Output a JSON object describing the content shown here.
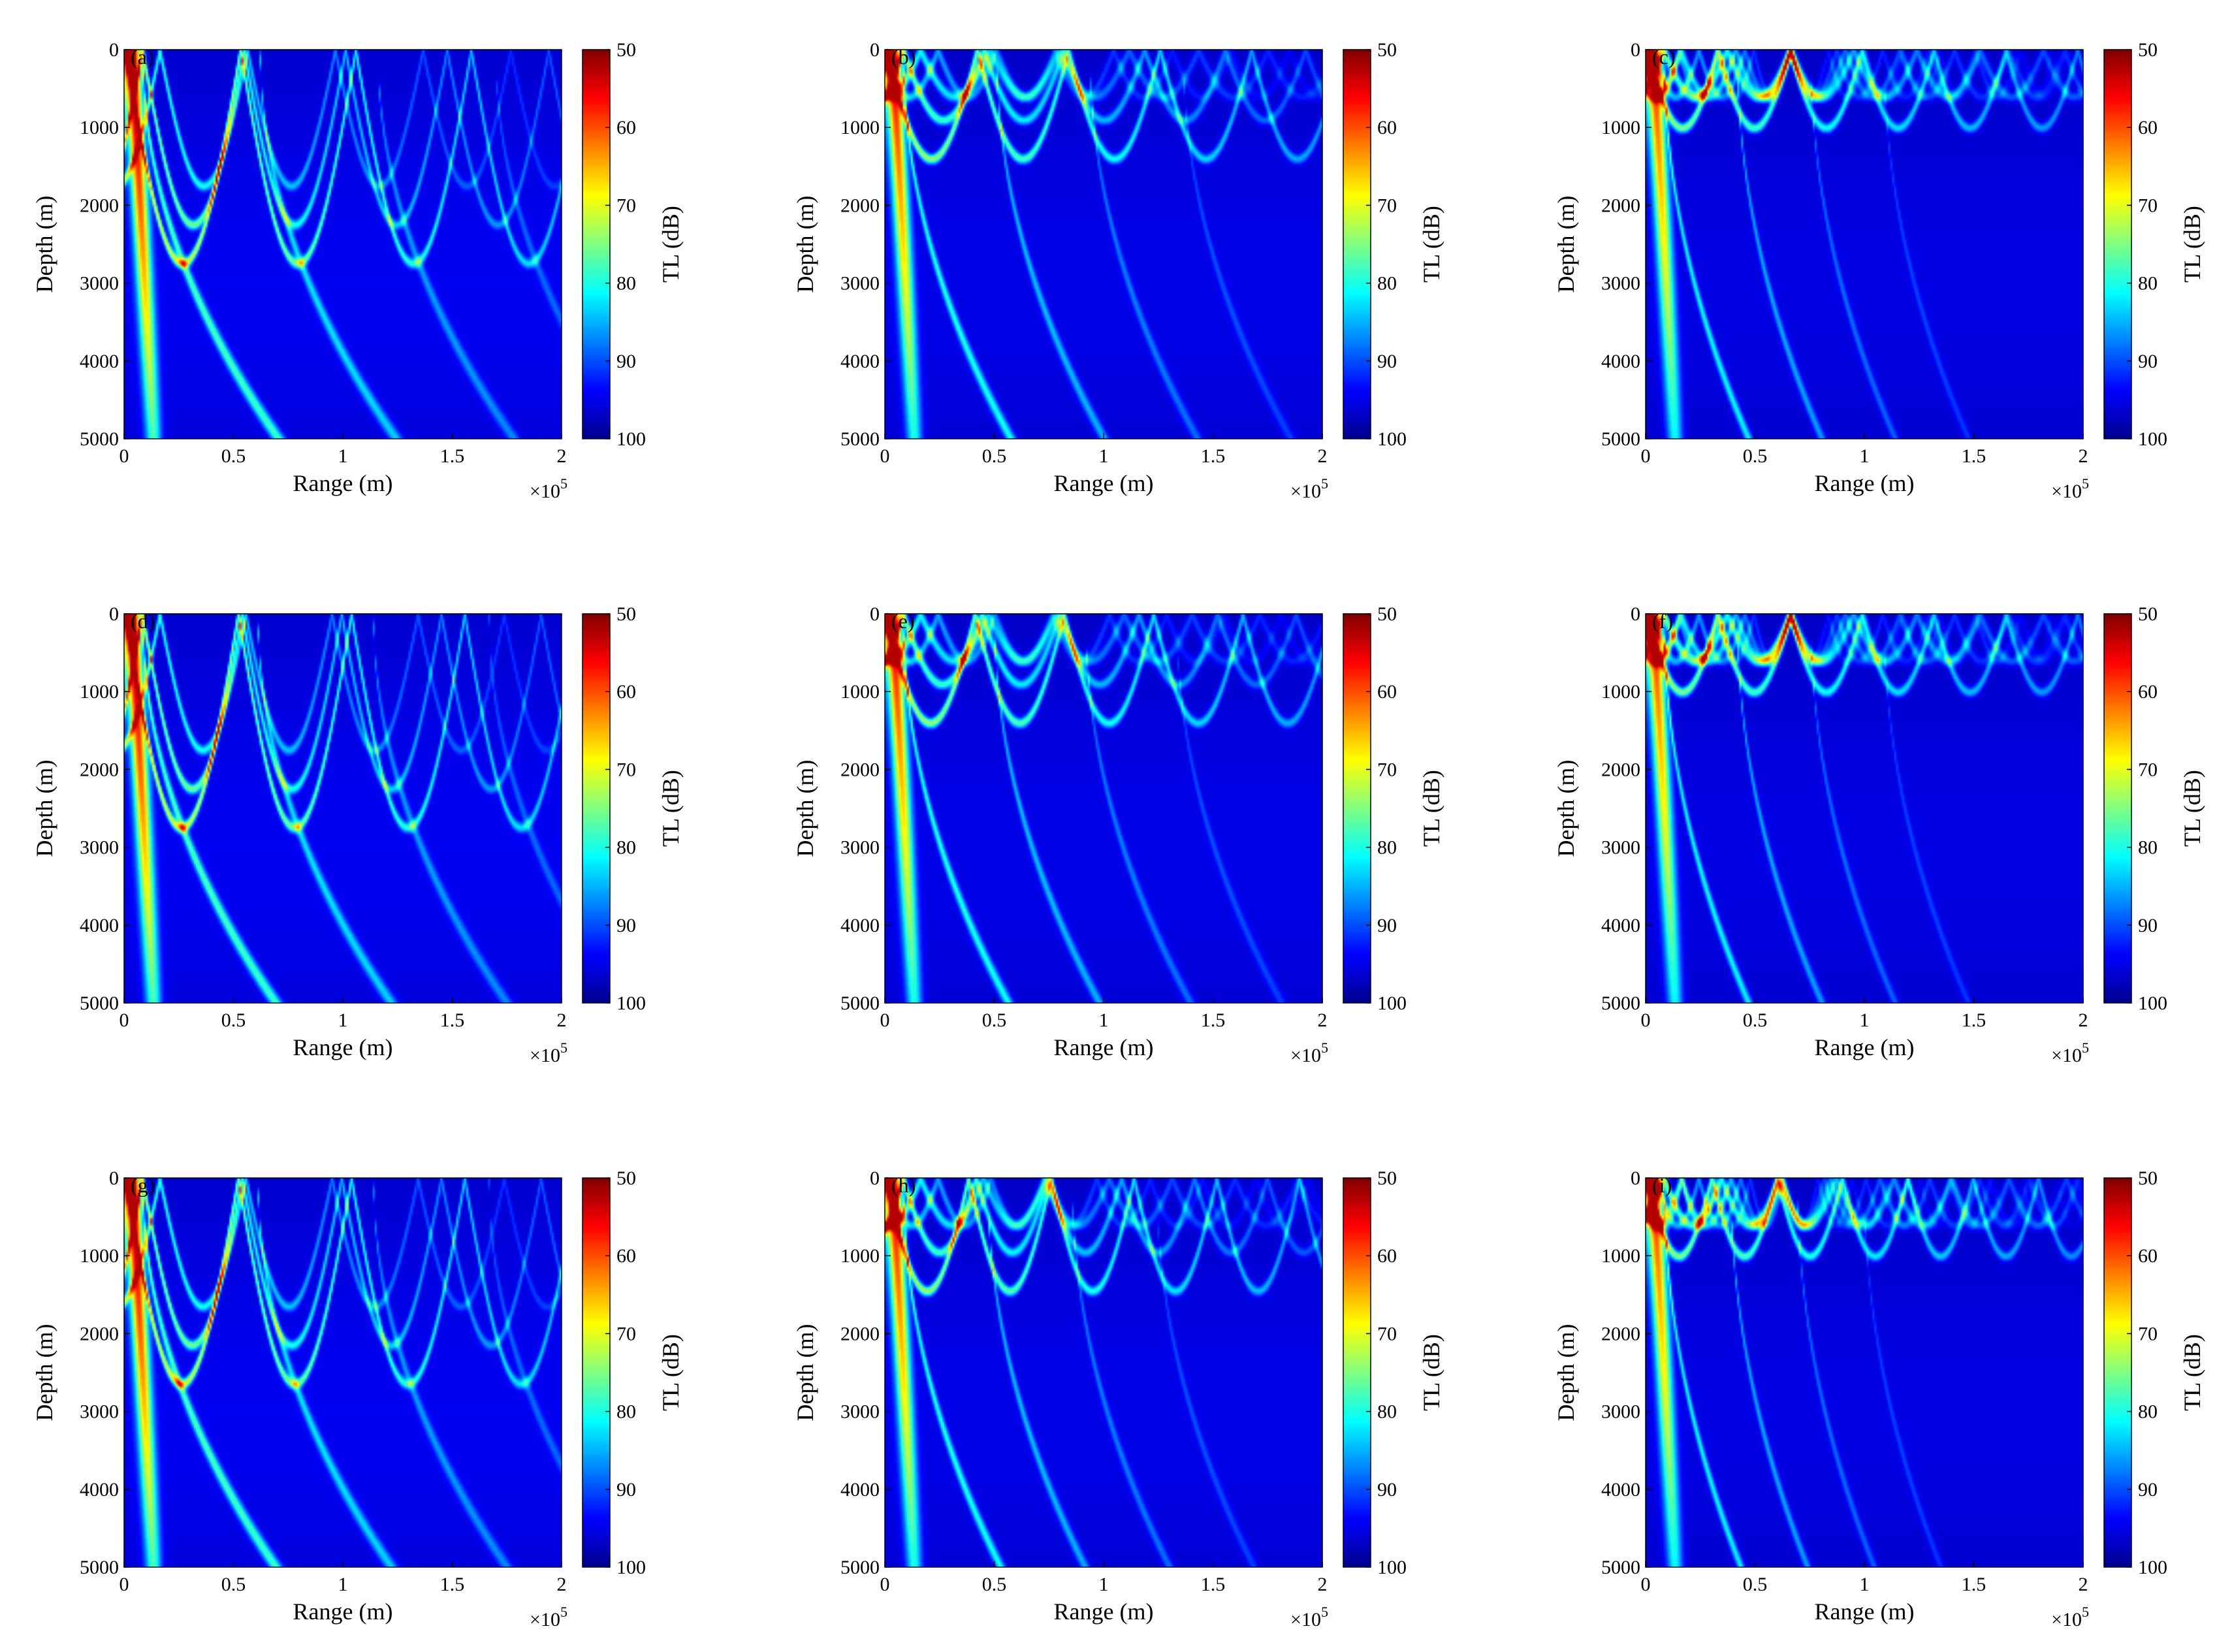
{
  "colormap": {
    "name": "jet",
    "stops": [
      "#00008f",
      "#0000ff",
      "#0080ff",
      "#00ffff",
      "#80ff80",
      "#ffff00",
      "#ff8000",
      "#ff0000",
      "#800000"
    ]
  },
  "chart_data": [
    {
      "panel": "(a)",
      "type": "heatmap",
      "xlabel": "Range (m)",
      "ylabel": "Depth (m)",
      "x_exponent": "×10",
      "x_exponent_power": "5",
      "xlim": [
        0,
        2
      ],
      "ylim": [
        0,
        5000
      ],
      "x_ticks": [
        "0",
        "0.5",
        "1",
        "1.5",
        "2"
      ],
      "y_ticks": [
        "0",
        "1000",
        "2000",
        "3000",
        "4000",
        "5000"
      ],
      "colorbar": {
        "label": "TL (dB)",
        "range": [
          50,
          100
        ],
        "ticks": [
          "50",
          "60",
          "70",
          "80",
          "90",
          "100"
        ]
      },
      "turning_depth_m": 2750,
      "cycle_length_x1e5_m": 0.53,
      "mode_density": 1,
      "brightness": 1.0
    },
    {
      "panel": "(b)",
      "type": "heatmap",
      "xlabel": "Range (m)",
      "ylabel": "Depth (m)",
      "x_exponent": "×10",
      "x_exponent_power": "5",
      "xlim": [
        0,
        2
      ],
      "ylim": [
        0,
        5000
      ],
      "x_ticks": [
        "0",
        "0.5",
        "1",
        "1.5",
        "2"
      ],
      "y_ticks": [
        "0",
        "1000",
        "2000",
        "3000",
        "4000",
        "5000"
      ],
      "colorbar": {
        "label": "TL (dB)",
        "range": [
          50,
          100
        ],
        "ticks": [
          "50",
          "60",
          "70",
          "80",
          "90",
          "100"
        ]
      },
      "turning_depth_m": 1400,
      "cycle_length_x1e5_m": 0.42,
      "mode_density": 2,
      "brightness": 0.9
    },
    {
      "panel": "(c)",
      "type": "heatmap",
      "xlabel": "Range (m)",
      "ylabel": "Depth (m)",
      "x_exponent": "×10",
      "x_exponent_power": "5",
      "xlim": [
        0,
        2
      ],
      "ylim": [
        0,
        5000
      ],
      "x_ticks": [
        "0",
        "0.5",
        "1",
        "1.5",
        "2"
      ],
      "y_ticks": [
        "0",
        "1000",
        "2000",
        "3000",
        "4000",
        "5000"
      ],
      "colorbar": {
        "label": "TL (dB)",
        "range": [
          50,
          100
        ],
        "ticks": [
          "50",
          "60",
          "70",
          "80",
          "90",
          "100"
        ]
      },
      "turning_depth_m": 1000,
      "cycle_length_x1e5_m": 0.33,
      "mode_density": 3,
      "brightness": 0.85
    },
    {
      "panel": "(d)",
      "type": "heatmap",
      "xlabel": "Range (m)",
      "ylabel": "Depth (m)",
      "x_exponent": "×10",
      "x_exponent_power": "5",
      "xlim": [
        0,
        2
      ],
      "ylim": [
        0,
        5000
      ],
      "x_ticks": [
        "0",
        "0.5",
        "1",
        "1.5",
        "2"
      ],
      "y_ticks": [
        "0",
        "1000",
        "2000",
        "3000",
        "4000",
        "5000"
      ],
      "colorbar": {
        "label": "TL (dB)",
        "range": [
          50,
          100
        ],
        "ticks": [
          "50",
          "60",
          "70",
          "80",
          "90",
          "100"
        ]
      },
      "turning_depth_m": 2750,
      "cycle_length_x1e5_m": 0.52,
      "mode_density": 1,
      "brightness": 1.0
    },
    {
      "panel": "(e)",
      "type": "heatmap",
      "xlabel": "Range (m)",
      "ylabel": "Depth (m)",
      "x_exponent": "×10",
      "x_exponent_power": "5",
      "xlim": [
        0,
        2
      ],
      "ylim": [
        0,
        5000
      ],
      "x_ticks": [
        "0",
        "0.5",
        "1",
        "1.5",
        "2"
      ],
      "y_ticks": [
        "0",
        "1000",
        "2000",
        "3000",
        "4000",
        "5000"
      ],
      "colorbar": {
        "label": "TL (dB)",
        "range": [
          50,
          100
        ],
        "ticks": [
          "50",
          "60",
          "70",
          "80",
          "90",
          "100"
        ]
      },
      "turning_depth_m": 1400,
      "cycle_length_x1e5_m": 0.41,
      "mode_density": 2,
      "brightness": 0.9
    },
    {
      "panel": "(f)",
      "type": "heatmap",
      "xlabel": "Range (m)",
      "ylabel": "Depth (m)",
      "x_exponent": "×10",
      "x_exponent_power": "5",
      "xlim": [
        0,
        2
      ],
      "ylim": [
        0,
        5000
      ],
      "x_ticks": [
        "0",
        "0.5",
        "1",
        "1.5",
        "2"
      ],
      "y_ticks": [
        "0",
        "1000",
        "2000",
        "3000",
        "4000",
        "5000"
      ],
      "colorbar": {
        "label": "TL (dB)",
        "range": [
          50,
          100
        ],
        "ticks": [
          "50",
          "60",
          "70",
          "80",
          "90",
          "100"
        ]
      },
      "turning_depth_m": 1000,
      "cycle_length_x1e5_m": 0.33,
      "mode_density": 3,
      "brightness": 0.85
    },
    {
      "panel": "(g)",
      "type": "heatmap",
      "xlabel": "Range (m)",
      "ylabel": "Depth (m)",
      "x_exponent": "×10",
      "x_exponent_power": "5",
      "xlim": [
        0,
        2
      ],
      "ylim": [
        0,
        5000
      ],
      "x_ticks": [
        "0",
        "0.5",
        "1",
        "1.5",
        "2"
      ],
      "y_ticks": [
        "0",
        "1000",
        "2000",
        "3000",
        "4000",
        "5000"
      ],
      "colorbar": {
        "label": "TL (dB)",
        "range": [
          50,
          100
        ],
        "ticks": [
          "50",
          "60",
          "70",
          "80",
          "90",
          "100"
        ]
      },
      "turning_depth_m": 2650,
      "cycle_length_x1e5_m": 0.52,
      "mode_density": 1,
      "brightness": 1.0
    },
    {
      "panel": "(h)",
      "type": "heatmap",
      "xlabel": "Range (m)",
      "ylabel": "Depth (m)",
      "x_exponent": "×10",
      "x_exponent_power": "5",
      "xlim": [
        0,
        2
      ],
      "ylim": [
        0,
        5000
      ],
      "x_ticks": [
        "0",
        "0.5",
        "1",
        "1.5",
        "2"
      ],
      "y_ticks": [
        "0",
        "1000",
        "2000",
        "3000",
        "4000",
        "5000"
      ],
      "colorbar": {
        "label": "TL (dB)",
        "range": [
          50,
          100
        ],
        "ticks": [
          "50",
          "60",
          "70",
          "80",
          "90",
          "100"
        ]
      },
      "turning_depth_m": 1450,
      "cycle_length_x1e5_m": 0.38,
      "mode_density": 2,
      "brightness": 0.9
    },
    {
      "panel": "(i)",
      "type": "heatmap",
      "xlabel": "Range (m)",
      "ylabel": "Depth (m)",
      "x_exponent": "×10",
      "x_exponent_power": "5",
      "xlim": [
        0,
        2
      ],
      "ylim": [
        0,
        5000
      ],
      "x_ticks": [
        "0",
        "0.5",
        "1",
        "1.5",
        "2"
      ],
      "y_ticks": [
        "0",
        "1000",
        "2000",
        "3000",
        "4000",
        "5000"
      ],
      "colorbar": {
        "label": "TL (dB)",
        "range": [
          50,
          100
        ],
        "ticks": [
          "50",
          "60",
          "70",
          "80",
          "90",
          "100"
        ]
      },
      "turning_depth_m": 1000,
      "cycle_length_x1e5_m": 0.3,
      "mode_density": 3,
      "brightness": 0.85
    }
  ]
}
